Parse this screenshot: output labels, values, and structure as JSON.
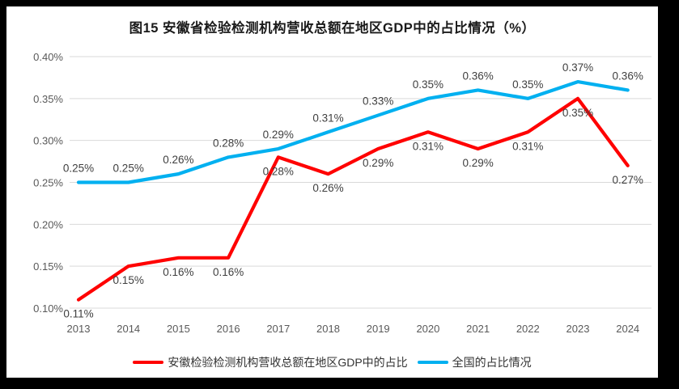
{
  "chart_data": {
    "type": "line",
    "title": "图15 安徽省检验检测机构营收总额在地区GDP中的占比情况（%）",
    "categories": [
      "2013",
      "2014",
      "2015",
      "2016",
      "2017",
      "2018",
      "2019",
      "2020",
      "2021",
      "2022",
      "2023",
      "2024"
    ],
    "series": [
      {
        "name": "安徽检验检测机构营收总额在地区GDP中的占比",
        "color": "#FF0000",
        "values": [
          0.11,
          0.15,
          0.16,
          0.16,
          0.28,
          0.26,
          0.29,
          0.31,
          0.29,
          0.31,
          0.35,
          0.27
        ],
        "labels": [
          "0.11%",
          "0.15%",
          "0.16%",
          "0.16%",
          "0.28%",
          "0.26%",
          "0.29%",
          "0.31%",
          "0.29%",
          "0.31%",
          "0.35%",
          "0.27%"
        ],
        "label_position": "below"
      },
      {
        "name": "全国的占比情况",
        "color": "#00B0F0",
        "values": [
          0.25,
          0.25,
          0.26,
          0.28,
          0.29,
          0.31,
          0.33,
          0.35,
          0.36,
          0.35,
          0.37,
          0.36
        ],
        "labels": [
          "0.25%",
          "0.25%",
          "0.26%",
          "0.28%",
          "0.29%",
          "0.31%",
          "0.33%",
          "0.35%",
          "0.36%",
          "0.35%",
          "0.37%",
          "0.36%"
        ],
        "label_position": "above"
      }
    ],
    "xlabel": "",
    "ylabel": "",
    "ylim": [
      0.1,
      0.4
    ],
    "yticks": [
      0.1,
      0.15,
      0.2,
      0.25,
      0.3,
      0.35,
      0.4
    ],
    "ytick_labels": [
      "0.10%",
      "0.15%",
      "0.20%",
      "0.25%",
      "0.30%",
      "0.35%",
      "0.40%"
    ],
    "grid": "horizontal",
    "grid_color": "#D9D9D9",
    "legend_position": "bottom"
  }
}
